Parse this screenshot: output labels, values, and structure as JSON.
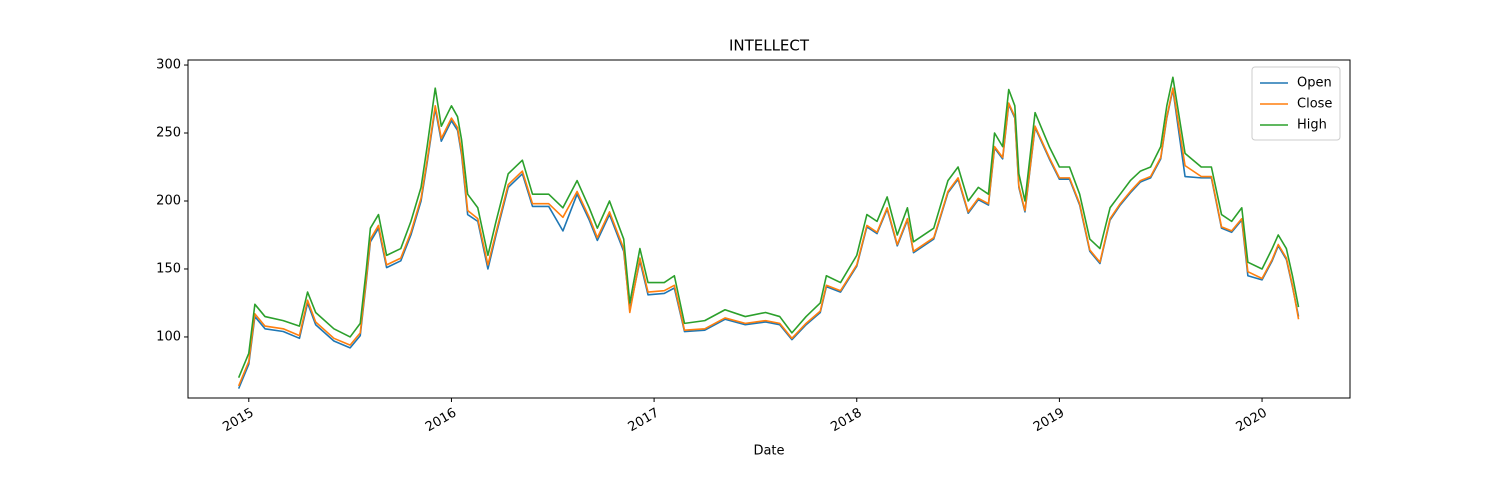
{
  "chart_data": {
    "type": "line",
    "title": "INTELLECT",
    "xlabel": "Date",
    "x": [
      2014.95,
      2015.0,
      2015.03,
      2015.08,
      2015.17,
      2015.25,
      2015.29,
      2015.33,
      2015.42,
      2015.5,
      2015.55,
      2015.58,
      2015.6,
      2015.64,
      2015.68,
      2015.75,
      2015.8,
      2015.85,
      2015.88,
      2015.92,
      2015.95,
      2016.0,
      2016.03,
      2016.05,
      2016.08,
      2016.13,
      2016.18,
      2016.22,
      2016.28,
      2016.35,
      2016.4,
      2016.48,
      2016.55,
      2016.62,
      2016.68,
      2016.72,
      2016.78,
      2016.85,
      2016.88,
      2016.93,
      2016.97,
      2017.05,
      2017.1,
      2017.15,
      2017.25,
      2017.35,
      2017.45,
      2017.55,
      2017.62,
      2017.68,
      2017.75,
      2017.82,
      2017.85,
      2017.92,
      2018.0,
      2018.05,
      2018.1,
      2018.15,
      2018.2,
      2018.25,
      2018.28,
      2018.38,
      2018.45,
      2018.5,
      2018.55,
      2018.6,
      2018.65,
      2018.68,
      2018.72,
      2018.75,
      2018.78,
      2018.8,
      2018.83,
      2018.88,
      2018.95,
      2019.0,
      2019.05,
      2019.1,
      2019.15,
      2019.2,
      2019.25,
      2019.3,
      2019.35,
      2019.4,
      2019.45,
      2019.5,
      2019.53,
      2019.56,
      2019.62,
      2019.7,
      2019.75,
      2019.8,
      2019.85,
      2019.9,
      2019.93,
      2020.0,
      2020.05,
      2020.08,
      2020.12,
      2020.15,
      2020.18
    ],
    "series": [
      {
        "name": "Open",
        "color": "#1f77b4",
        "values": [
          62,
          80,
          115,
          106,
          104,
          99,
          125,
          109,
          97,
          92,
          101,
          141,
          170,
          180,
          151,
          156,
          175,
          200,
          228,
          268,
          244,
          259,
          252,
          234,
          190,
          185,
          150,
          175,
          210,
          220,
          196,
          196,
          178,
          205,
          186,
          171,
          190,
          163,
          120,
          156,
          131,
          132,
          136,
          104,
          105,
          113,
          109,
          111,
          109,
          98,
          109,
          118,
          137,
          133,
          152,
          181,
          176,
          194,
          167,
          186,
          162,
          172,
          206,
          216,
          191,
          201,
          197,
          239,
          231,
          271,
          261,
          210,
          192,
          254,
          231,
          216,
          216,
          197,
          163,
          154,
          186,
          197,
          206,
          214,
          217,
          231,
          261,
          282,
          218,
          217,
          217,
          180,
          177,
          186,
          145,
          142,
          156,
          167,
          157,
          137,
          115
        ]
      },
      {
        "name": "Close",
        "color": "#ff7f0e",
        "values": [
          64,
          82,
          117,
          108,
          106,
          101,
          127,
          111,
          99,
          94,
          103,
          143,
          172,
          182,
          153,
          158,
          177,
          202,
          230,
          270,
          246,
          261,
          254,
          236,
          193,
          187,
          153,
          177,
          212,
          222,
          198,
          198,
          188,
          207,
          188,
          173,
          192,
          165,
          118,
          158,
          133,
          134,
          138,
          105,
          106,
          114,
          110,
          112,
          110,
          99,
          110,
          119,
          138,
          134,
          153,
          182,
          177,
          195,
          168,
          187,
          163,
          173,
          207,
          217,
          192,
          202,
          198,
          240,
          232,
          272,
          262,
          211,
          193,
          255,
          232,
          217,
          217,
          198,
          164,
          155,
          187,
          198,
          207,
          215,
          218,
          232,
          262,
          283,
          226,
          218,
          218,
          181,
          178,
          187,
          148,
          143,
          157,
          168,
          158,
          138,
          113
        ]
      },
      {
        "name": "High",
        "color": "#2ca02c",
        "values": [
          70,
          88,
          124,
          115,
          112,
          108,
          133,
          118,
          106,
          100,
          110,
          150,
          180,
          190,
          160,
          165,
          185,
          210,
          240,
          283,
          255,
          270,
          262,
          245,
          205,
          195,
          160,
          185,
          220,
          230,
          205,
          205,
          195,
          215,
          195,
          180,
          200,
          172,
          125,
          165,
          140,
          140,
          145,
          110,
          112,
          120,
          115,
          118,
          115,
          103,
          115,
          125,
          145,
          140,
          160,
          190,
          185,
          203,
          175,
          195,
          170,
          180,
          215,
          225,
          200,
          210,
          205,
          250,
          240,
          282,
          270,
          220,
          200,
          265,
          240,
          225,
          225,
          205,
          172,
          165,
          195,
          205,
          215,
          222,
          225,
          240,
          270,
          291,
          235,
          225,
          225,
          190,
          185,
          195,
          155,
          150,
          165,
          175,
          165,
          145,
          122
        ]
      }
    ],
    "xlim": [
      2014.7,
      2020.434
    ],
    "xticks": [
      2015,
      2016,
      2017,
      2018,
      2019,
      2020
    ],
    "ylim": [
      55.1,
      303.7
    ],
    "yticks": [
      100,
      150,
      200,
      250,
      300
    ],
    "grid": false,
    "legend": "upper right"
  }
}
